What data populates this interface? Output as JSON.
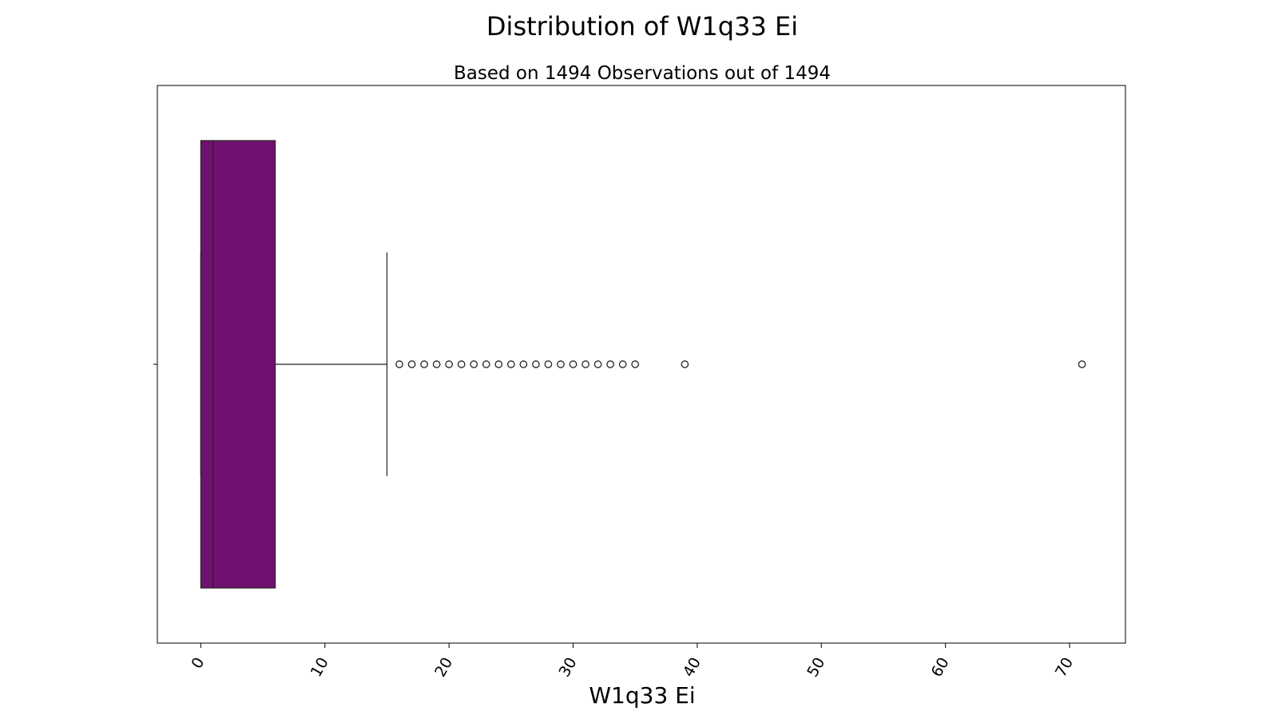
{
  "chart_data": {
    "type": "box",
    "orientation": "horizontal",
    "title": "Distribution of W1q33 Ei",
    "subtitle": "Based on 1494 Observations out of 1494",
    "xlabel": "W1q33 Ei",
    "ylabel": "",
    "xlim": [
      -3.5,
      74.5
    ],
    "xticks": [
      0,
      10,
      20,
      30,
      40,
      50,
      60,
      70
    ],
    "xtick_labels": [
      "0",
      "10",
      "20",
      "30",
      "40",
      "50",
      "60",
      "70"
    ],
    "xtick_rotation": -60,
    "grid": false,
    "legend": "none",
    "box": {
      "min": 0,
      "q1": 0,
      "median": 1,
      "q3": 6,
      "whisker_low": 0,
      "whisker_high": 15,
      "outliers": [
        16,
        17,
        18,
        19,
        20,
        21,
        22,
        23,
        24,
        25,
        26,
        27,
        28,
        29,
        30,
        31,
        32,
        33,
        34,
        35,
        39,
        71
      ]
    },
    "colors": {
      "box_fill": "#701170",
      "lines": "#222222",
      "outlier_edge": "#222222"
    }
  }
}
